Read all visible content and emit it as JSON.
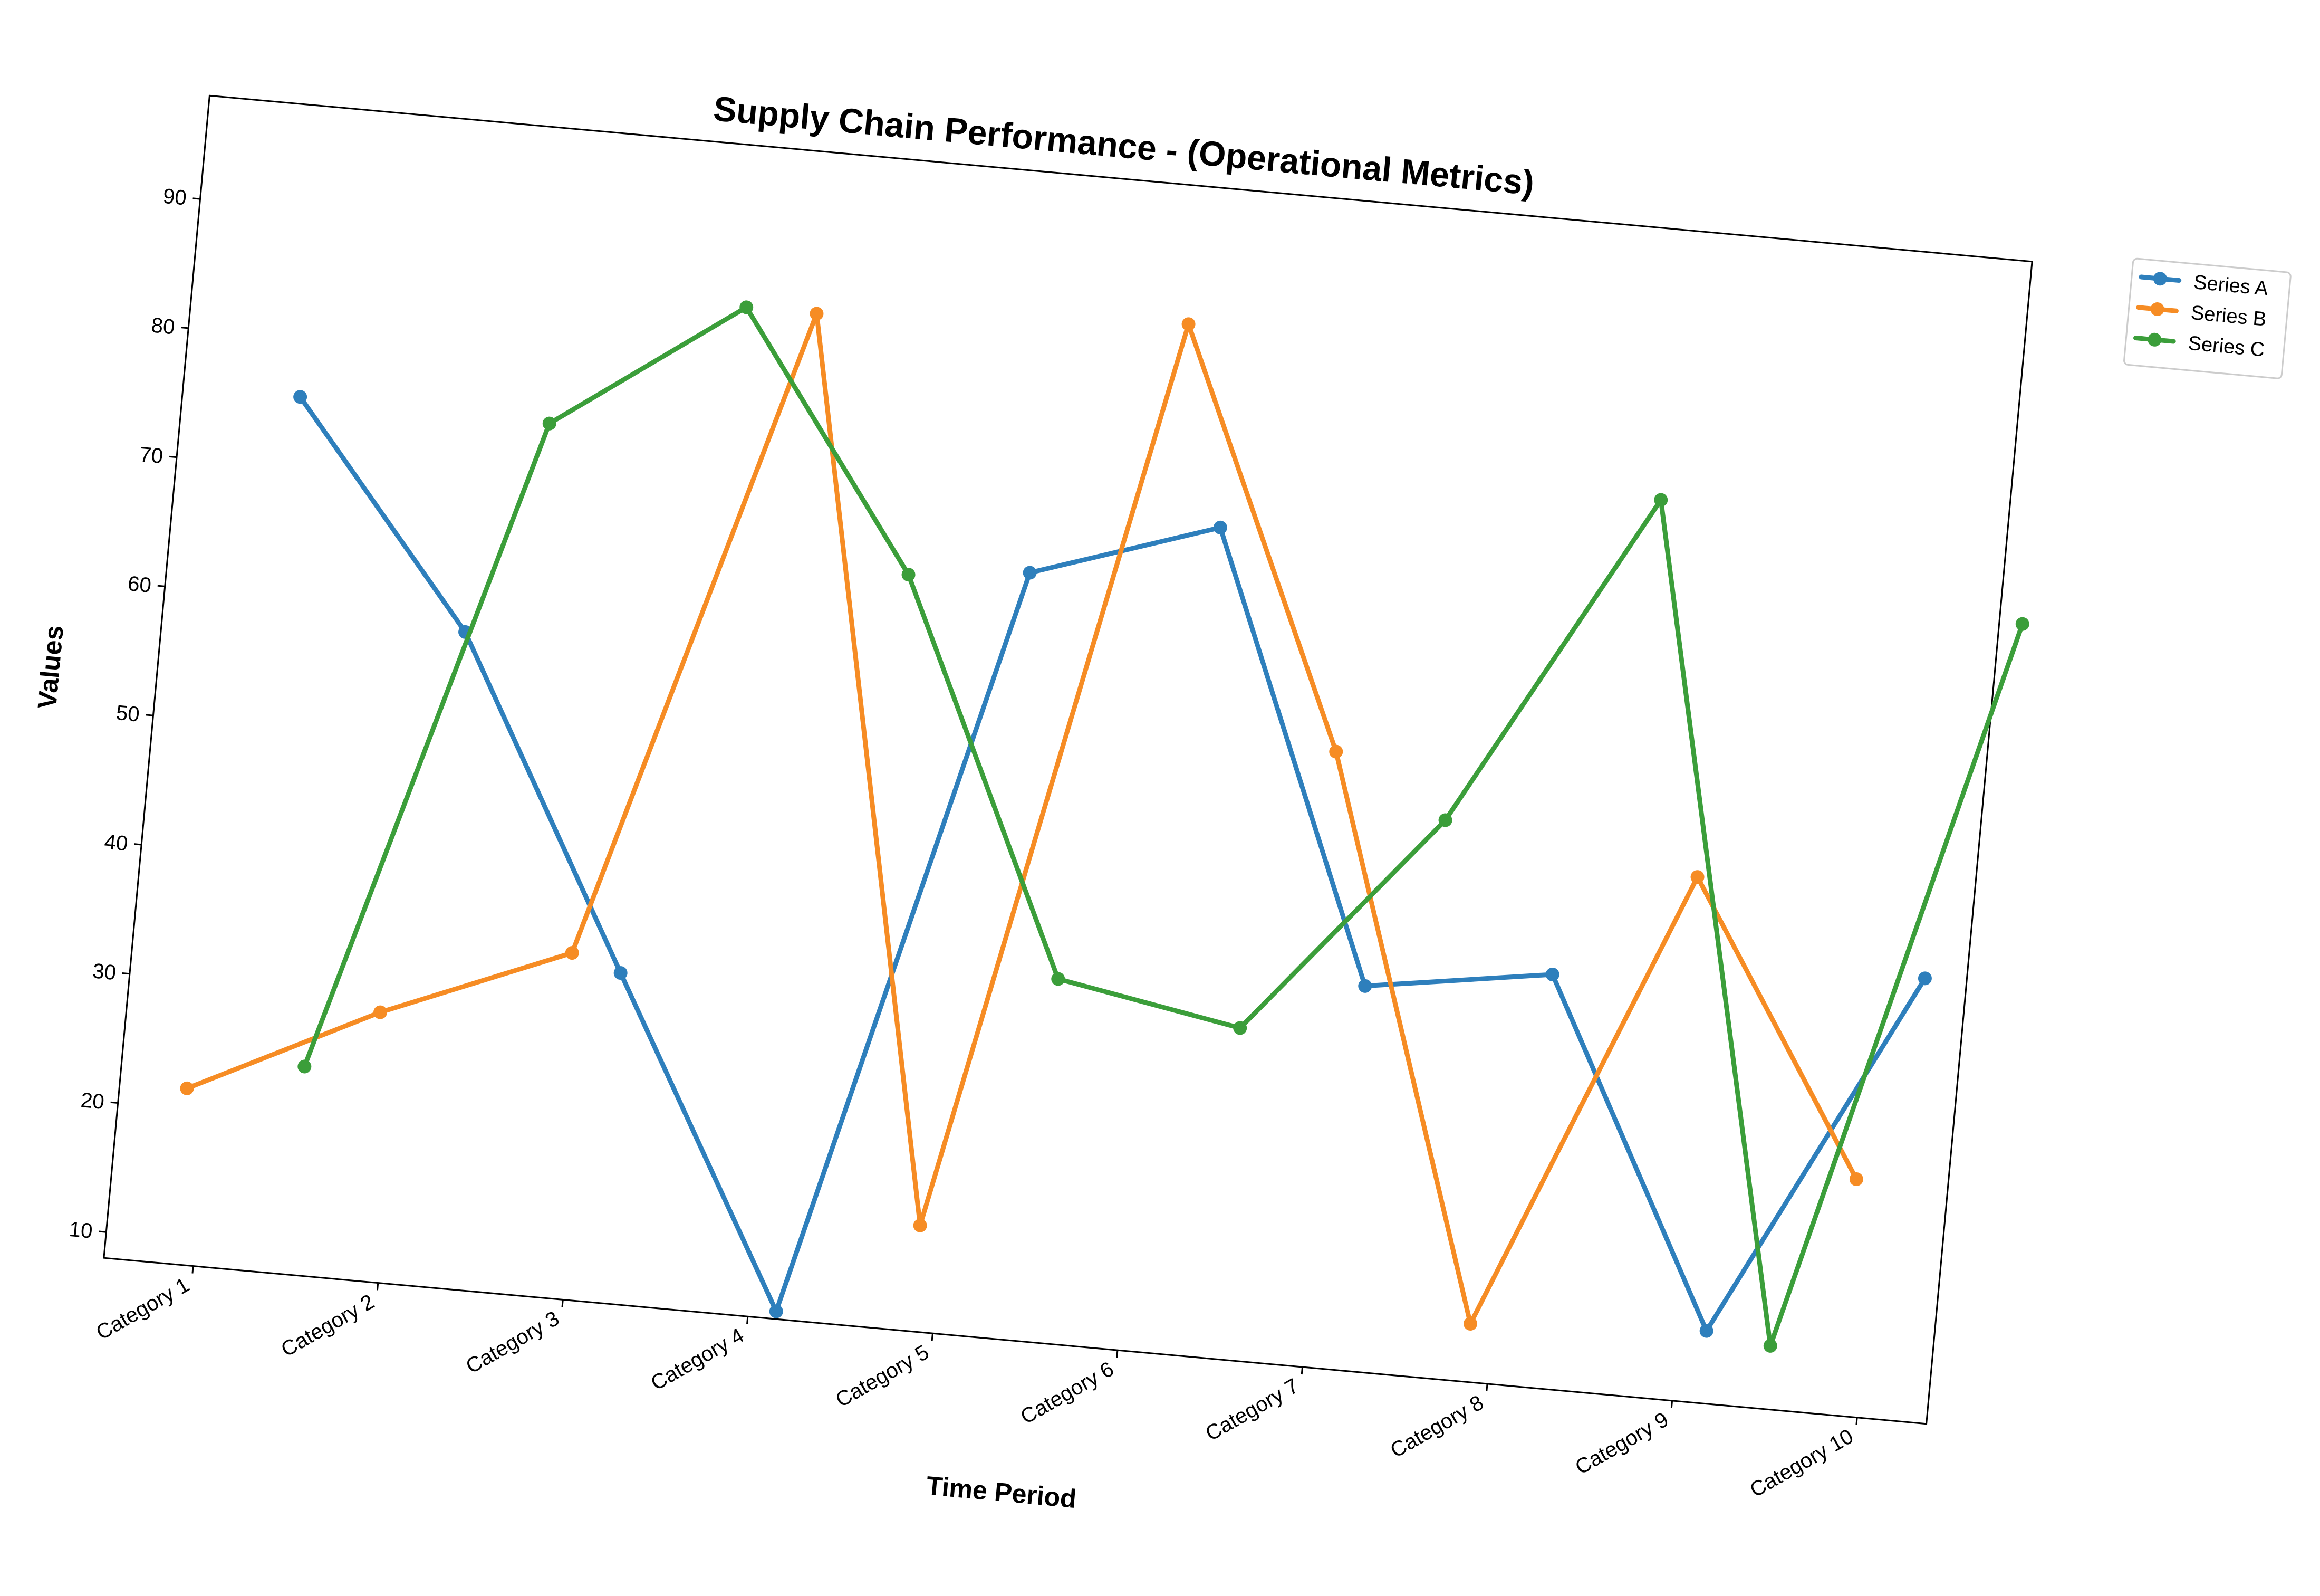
{
  "chart_data": {
    "type": "line",
    "title": "Supply Chain Performance - (Operational Metrics)",
    "xlabel": "Time Period",
    "ylabel": "Values",
    "categories": [
      "Category 1",
      "Category 2",
      "Category 3",
      "Category 4",
      "Category 5",
      "Category 6",
      "Category 7",
      "Category 8",
      "Category 9",
      "Category 10"
    ],
    "yticks": [
      10,
      20,
      30,
      40,
      50,
      60,
      70,
      80,
      90
    ],
    "ylim": [
      8,
      98
    ],
    "grid": false,
    "legend_position": "upper-right-outside",
    "series": [
      {
        "name": "Series A",
        "color": "#2e7fbc",
        "values": [
          75.5,
          58.6,
          33.5,
          8.6,
          67.1,
          71.9,
          37.7,
          39.9,
          13.6,
          42.2
        ]
      },
      {
        "name": "Series B",
        "color": "#f68c24",
        "values": [
          21.6,
          28.8,
          34.7,
          85.5,
          16.2,
          87.3,
          55.5,
          12.5,
          48.4,
          26.3
        ]
      },
      {
        "name": "Series C",
        "color": "#3b9e3a",
        "values": [
          24.1,
          75.2,
          85.5,
          66.1,
          36.1,
          33.6,
          51.0,
          77.1,
          12.9,
          70.1
        ]
      }
    ]
  }
}
